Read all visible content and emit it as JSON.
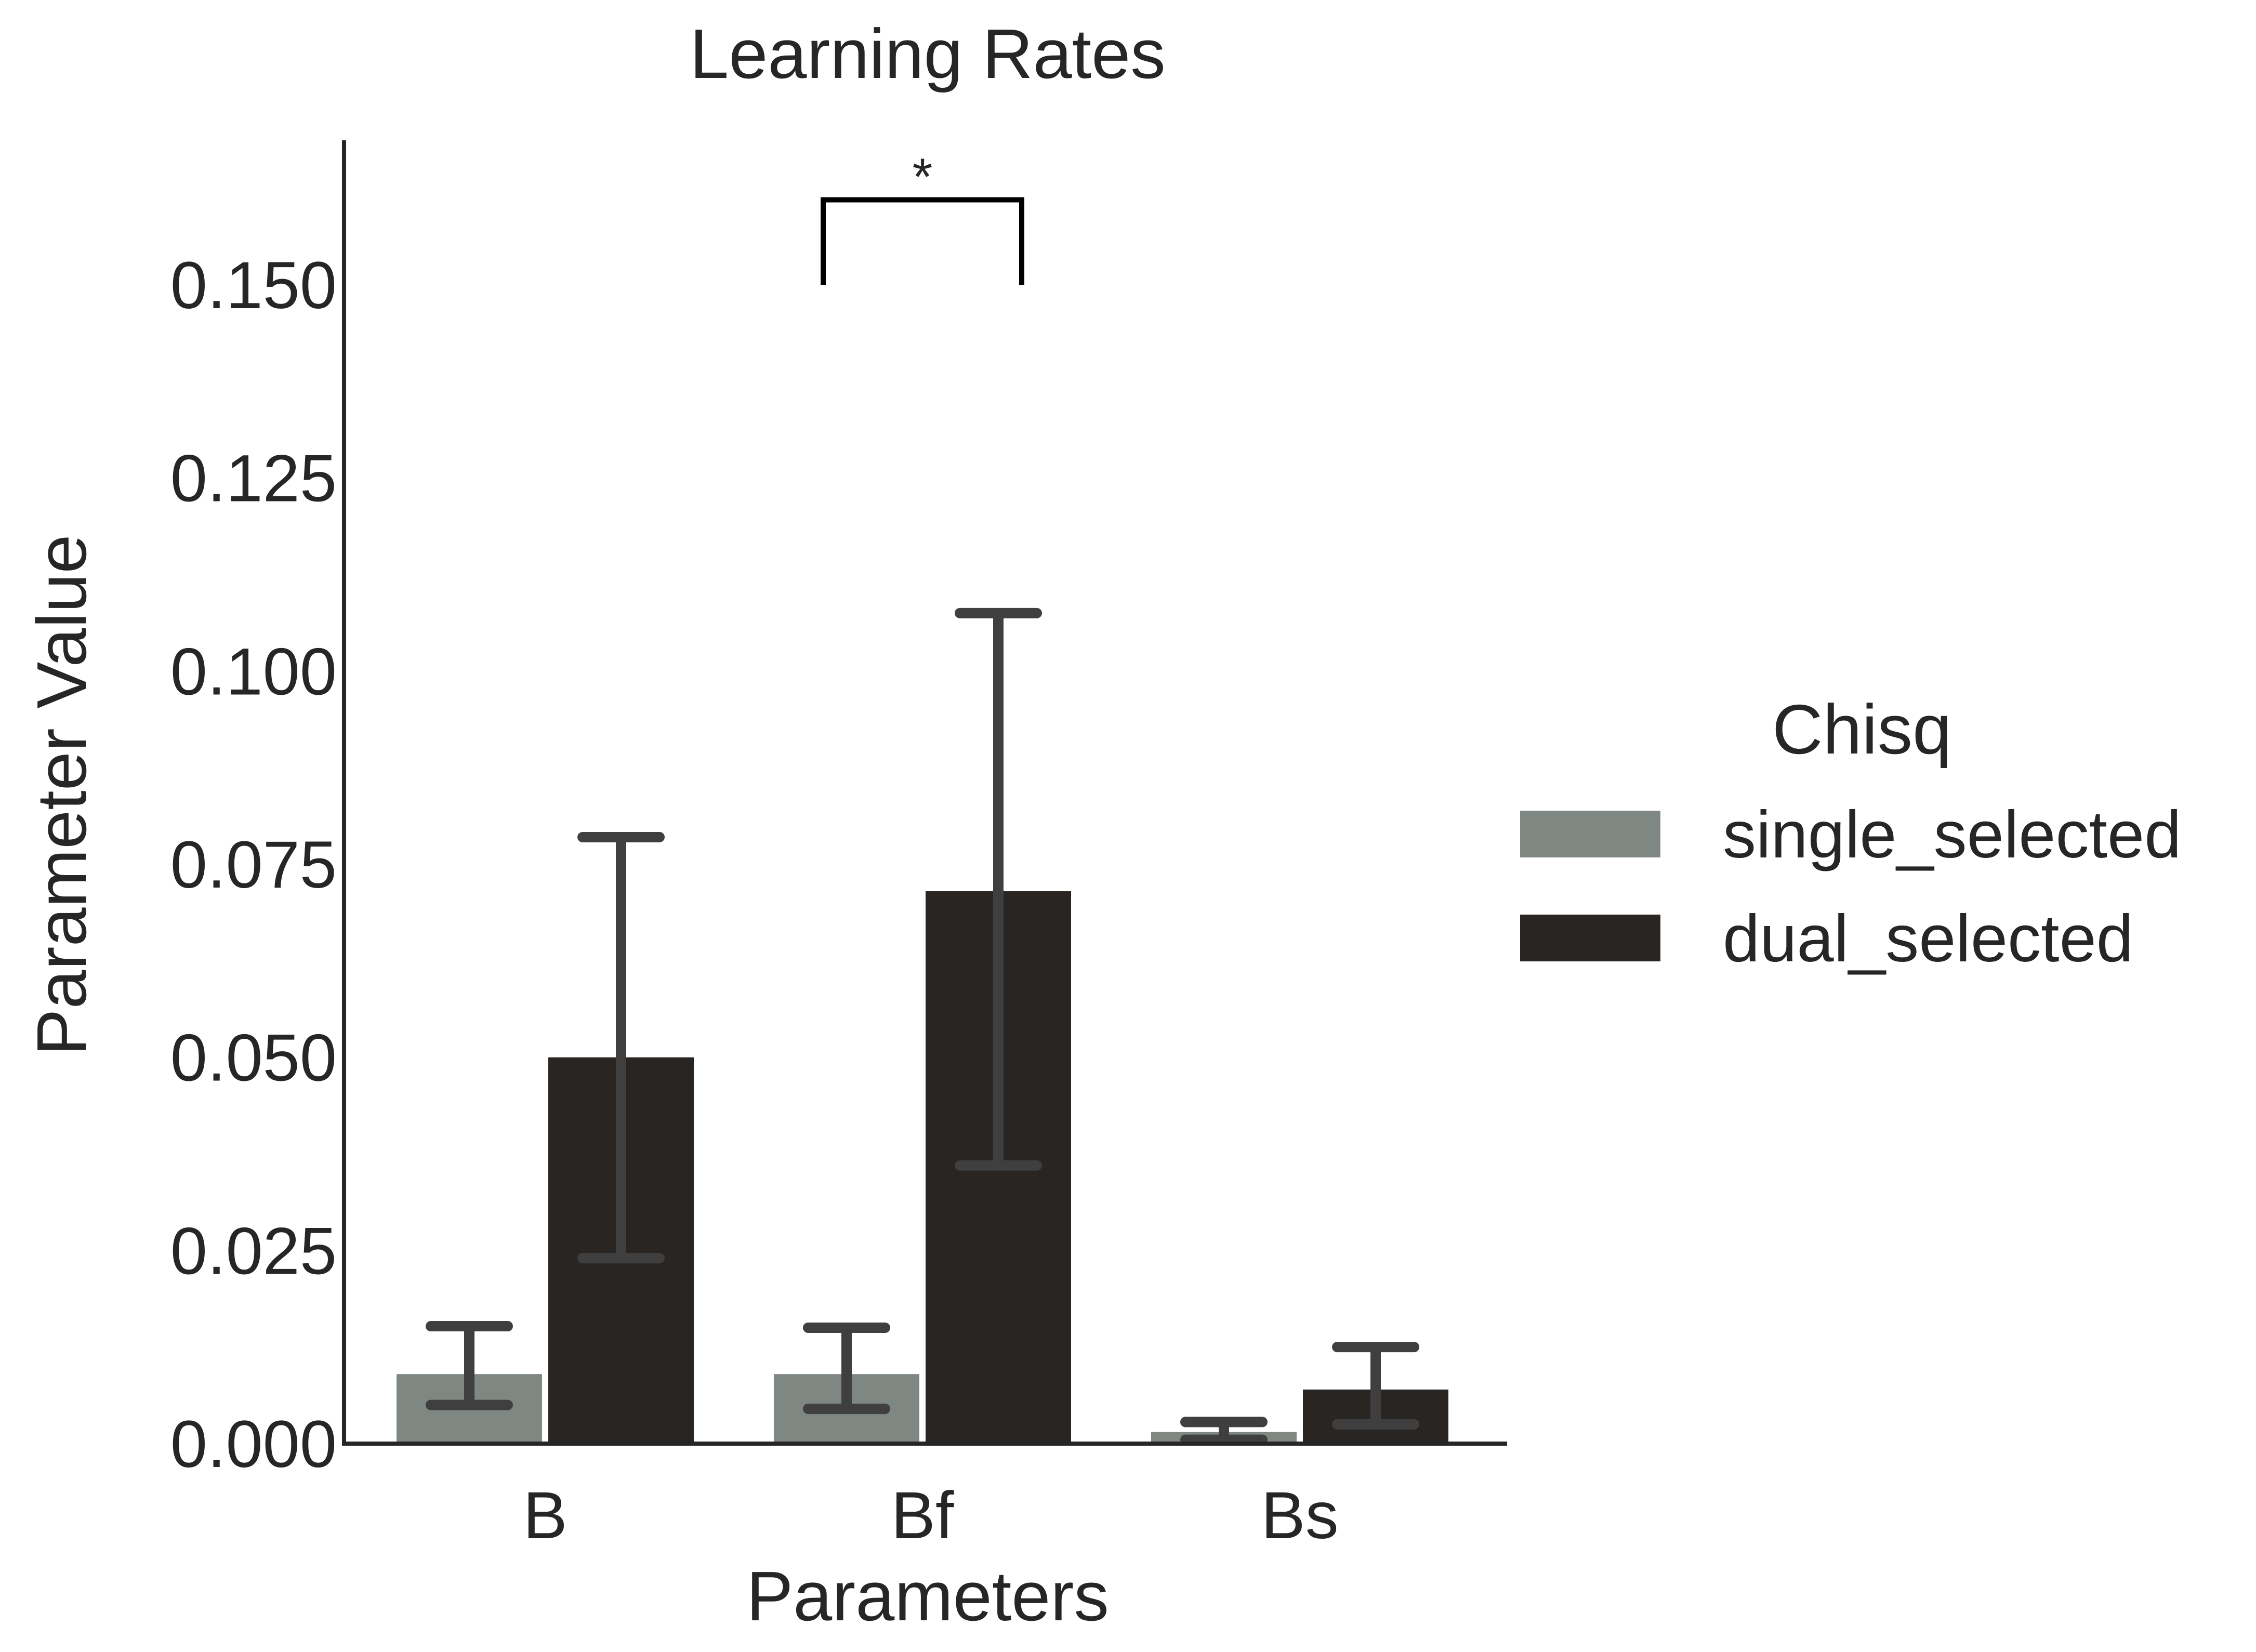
{
  "chart_data": {
    "type": "bar",
    "title": "Learning Rates",
    "xlabel": "Parameters",
    "ylabel": "Parameter Value",
    "categories": [
      "B",
      "Bf",
      "Bs"
    ],
    "ylim": [
      0,
      0.169
    ],
    "yticks": [
      0.0,
      0.025,
      0.05,
      0.075,
      0.1,
      0.125,
      0.15
    ],
    "ytick_labels": [
      "0.000",
      "0.025",
      "0.050",
      "0.075",
      "0.100",
      "0.125",
      "0.150"
    ],
    "grid": false,
    "legend": {
      "title": "Chisq",
      "placement": "right"
    },
    "series": [
      {
        "name": "single_selected",
        "color": "#7f8783",
        "values": [
          0.009,
          0.009,
          0.0015
        ],
        "err_low": [
          0.005,
          0.0045,
          0.0005
        ],
        "err_high": [
          0.0152,
          0.015,
          0.0028
        ]
      },
      {
        "name": "dual_selected",
        "color": "#282522",
        "values": [
          0.05,
          0.0715,
          0.007
        ],
        "err_low": [
          0.024,
          0.036,
          0.0025
        ],
        "err_high": [
          0.0785,
          0.1075,
          0.0125
        ]
      }
    ],
    "errorbar_color": "#3f3f3f",
    "annotations": [
      {
        "type": "significance-bracket",
        "text": "*",
        "between": [
          "Bf single_selected",
          "Bf dual_selected"
        ],
        "y_low": 0.15,
        "y_high": 0.161
      }
    ]
  }
}
